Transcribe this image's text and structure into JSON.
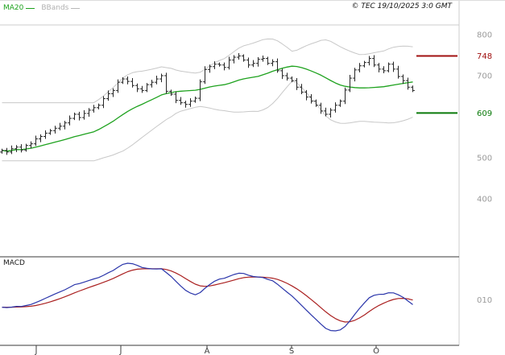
{
  "header": {
    "legend": {
      "ma20": "MA20",
      "bbands": "BBands"
    },
    "copyright": "© TEC 19/10/2025 3:0 GMT"
  },
  "chart_data": {
    "type": "ohlc",
    "x_axis": {
      "tick_labels": [
        "J",
        "J",
        "A",
        "S",
        "O"
      ]
    },
    "price_panel": {
      "y_ticks": [
        800,
        700,
        500,
        400
      ],
      "y_tick_labels": [
        "800",
        "700",
        "500",
        "400"
      ],
      "levels": [
        {
          "label": "748",
          "value": 748,
          "role": "resistance",
          "color": "#a01010"
        },
        {
          "label": "609",
          "value": 609,
          "role": "support",
          "color": "#0a7a0a"
        }
      ],
      "overlays": [
        {
          "name": "MA20",
          "window": 20,
          "color": "#1ea21e"
        },
        {
          "name": "BBands",
          "window": 20,
          "stddev": 2,
          "color": "#c8c8c8"
        }
      ],
      "closes": [
        518,
        514,
        522,
        526,
        519,
        530,
        534,
        546,
        552,
        560,
        566,
        572,
        577,
        585,
        596,
        606,
        598,
        608,
        616,
        622,
        628,
        644,
        656,
        664,
        684,
        692,
        686,
        676,
        668,
        664,
        678,
        684,
        692,
        700,
        662,
        655,
        640,
        634,
        630,
        638,
        645,
        685,
        715,
        722,
        728,
        726,
        720,
        738,
        745,
        748,
        738,
        726,
        730,
        740,
        742,
        730,
        734,
        712,
        700,
        694,
        688,
        672,
        660,
        648,
        638,
        628,
        614,
        606,
        616,
        628,
        638,
        665,
        694,
        714,
        724,
        732,
        742,
        726,
        716,
        712,
        728,
        716,
        698,
        688,
        672,
        664
      ]
    },
    "macd_panel": {
      "label": "MACD",
      "y_tick_labels": [
        "010"
      ],
      "fast": 12,
      "slow": 26,
      "signal": 9,
      "line_color": "#2a35aa",
      "signal_color": "#aa2020"
    },
    "colors": {
      "bars": "#262626",
      "axis_text": "#9a9a9a",
      "month_text": "#3c3c3c",
      "border_light": "#cccccc",
      "border_dark": "#3a3a3a",
      "background": "#ffffff"
    }
  }
}
